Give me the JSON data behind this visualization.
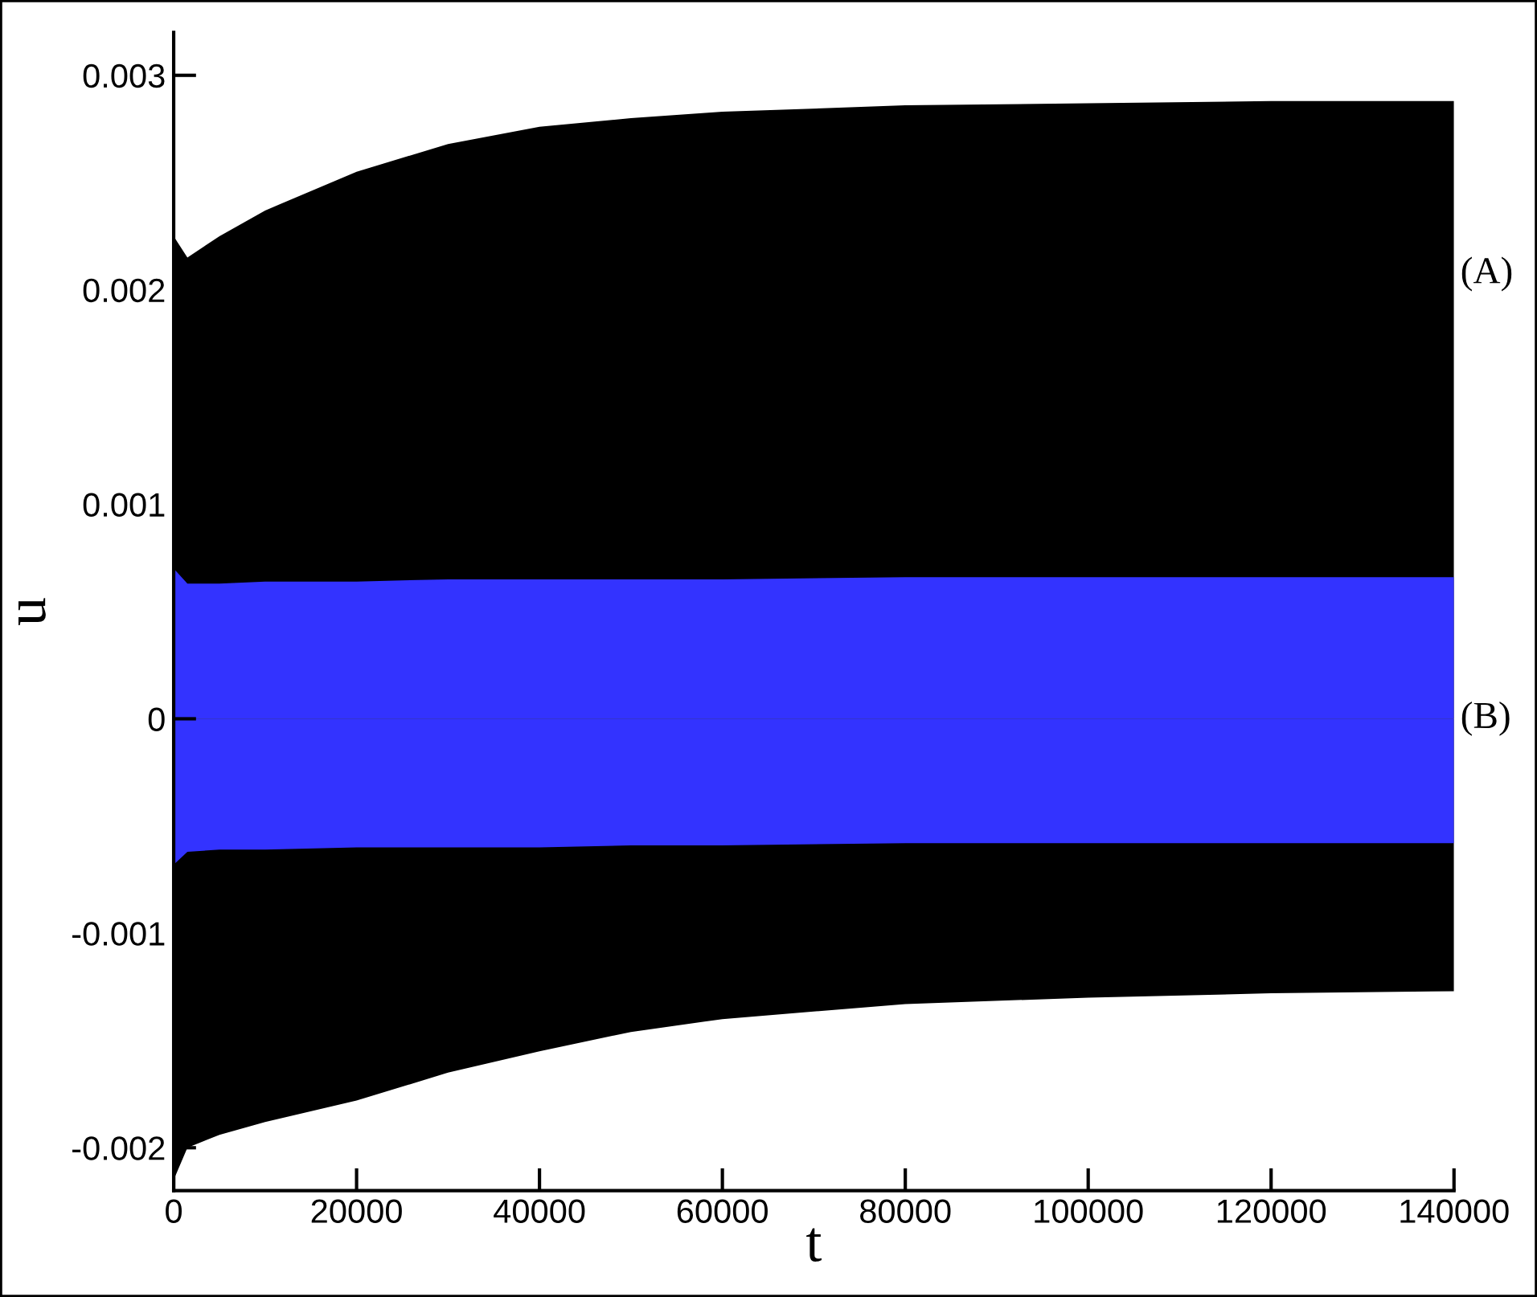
{
  "chart_data": {
    "type": "area",
    "xlabel": "t",
    "ylabel": "u",
    "x": [
      0,
      1500,
      5000,
      10000,
      20000,
      30000,
      40000,
      50000,
      60000,
      80000,
      100000,
      120000,
      140000
    ],
    "series": [
      {
        "name": "(A)",
        "color": "#000000",
        "values": [
          0.00225,
          0.00215,
          0.00225,
          0.00237,
          0.00255,
          0.00268,
          0.00276,
          0.0028,
          0.00283,
          0.00286,
          0.00287,
          0.00288,
          0.00288
        ]
      },
      {
        "color": "#000000",
        "values": [
          -0.00215,
          -0.002,
          -0.00194,
          -0.00188,
          -0.00178,
          -0.00165,
          -0.00155,
          -0.00146,
          -0.0014,
          -0.00133,
          -0.0013,
          -0.00128,
          -0.00127
        ]
      },
      {
        "name": "(B)",
        "color": "#3333ff",
        "values": [
          0.0007,
          0.00063,
          0.00063,
          0.00064,
          0.00064,
          0.00065,
          0.00065,
          0.00065,
          0.00065,
          0.00066,
          0.00066,
          0.00066,
          0.00066
        ]
      },
      {
        "color": "#3333ff",
        "values": [
          -0.00068,
          -0.00062,
          -0.00061,
          -0.00061,
          -0.0006,
          -0.0006,
          -0.0006,
          -0.00059,
          -0.00059,
          -0.00058,
          -0.00058,
          -0.00058,
          -0.00058
        ]
      }
    ],
    "xlim": [
      0,
      140000
    ],
    "xticks": [
      0,
      20000,
      40000,
      60000,
      80000,
      100000,
      120000,
      140000
    ],
    "ylim": [
      -0.0022,
      0.0032
    ],
    "yticks": [
      {
        "value": -0.002,
        "label": "-0.002"
      },
      {
        "value": -0.001,
        "label": "-0.001"
      },
      0,
      0.001,
      0.002,
      0.003
    ],
    "grid": false,
    "legend": false
  }
}
